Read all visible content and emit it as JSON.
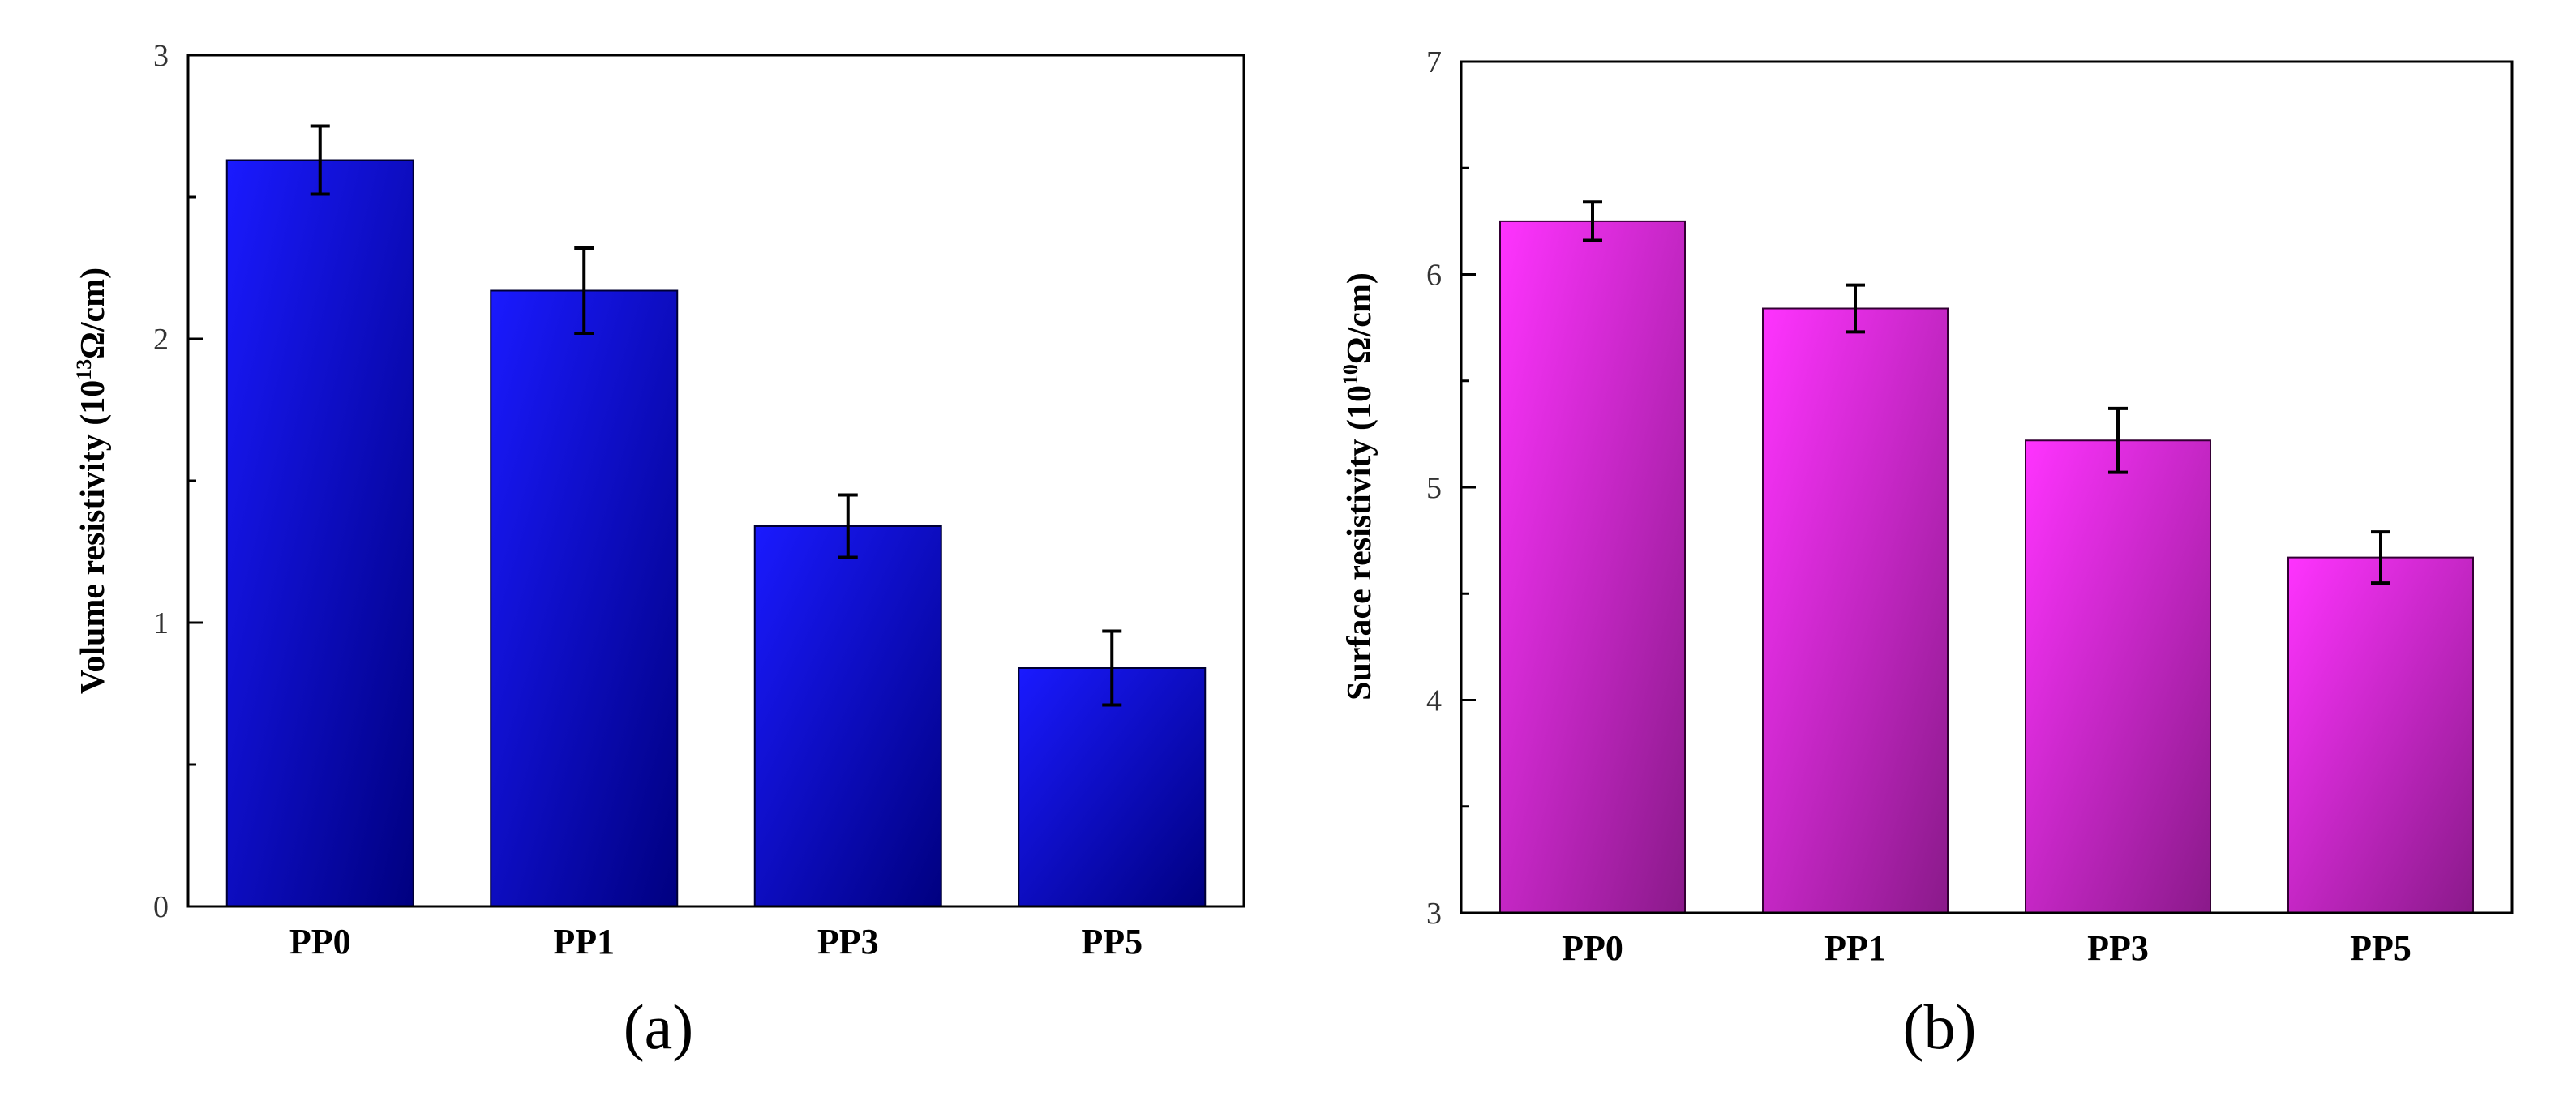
{
  "chart_data": [
    {
      "type": "bar",
      "panel_label": "(a)",
      "title": "",
      "xlabel": "",
      "ylabel": "Volume resistivity (10",
      "ylabel_exponent": "13",
      "ylabel_unit": "Ω/cm)",
      "categories": [
        "PP0",
        "PP1",
        "PP3",
        "PP5"
      ],
      "values": [
        2.63,
        2.17,
        1.34,
        0.84
      ],
      "errors": [
        0.12,
        0.15,
        0.11,
        0.13
      ],
      "ylim": [
        0,
        3
      ],
      "yticks": [
        0,
        1,
        2,
        3
      ],
      "ytick_labels": [
        "0",
        "1",
        "2",
        "3"
      ],
      "grid": false,
      "colors": {
        "light": "#1a1aff",
        "dark": "#000080",
        "edge": "#000033"
      }
    },
    {
      "type": "bar",
      "panel_label": "(b)",
      "title": "",
      "xlabel": "",
      "ylabel": "Surface resistivity (10",
      "ylabel_exponent": "10",
      "ylabel_unit": "Ω/cm)",
      "categories": [
        "PP0",
        "PP1",
        "PP3",
        "PP5"
      ],
      "values": [
        6.25,
        5.84,
        5.22,
        4.67
      ],
      "errors": [
        0.09,
        0.11,
        0.15,
        0.12
      ],
      "ylim": [
        3,
        7
      ],
      "yticks": [
        3,
        4,
        5,
        6,
        7
      ],
      "ytick_labels": [
        "3",
        "4",
        "5",
        "6",
        "7"
      ],
      "grid": false,
      "colors": {
        "light": "#ff33ff",
        "dark": "#8a1a8a",
        "edge": "#330033"
      }
    }
  ]
}
